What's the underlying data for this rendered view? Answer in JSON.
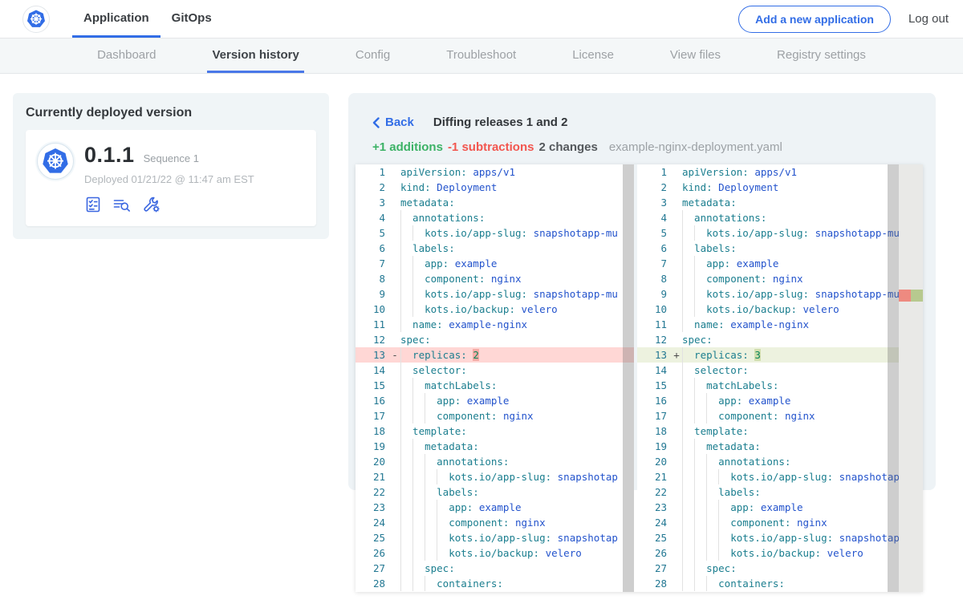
{
  "colors": {
    "accent": "#326de6",
    "green": "#3cb266",
    "red": "#f2564f",
    "key": "#1b7e8f",
    "val": "#2353cc",
    "numv": "#098658",
    "linenum": "#237893",
    "del_line": "#ffd7d5",
    "del_char": "#f8aba6",
    "ins_line": "#edf2df",
    "ins_char": "#d2deae"
  },
  "topnav": {
    "tabs": [
      {
        "label": "Application",
        "active": true
      },
      {
        "label": "GitOps",
        "active": false
      }
    ],
    "add_button": "Add a new application",
    "logout": "Log out"
  },
  "subnav": {
    "items": [
      {
        "label": "Dashboard",
        "active": false
      },
      {
        "label": "Version history",
        "active": true
      },
      {
        "label": "Config",
        "active": false
      },
      {
        "label": "Troubleshoot",
        "active": false
      },
      {
        "label": "License",
        "active": false
      },
      {
        "label": "View files",
        "active": false
      },
      {
        "label": "Registry settings",
        "active": false
      }
    ]
  },
  "deployed_card": {
    "title": "Currently deployed version",
    "version": "0.1.1",
    "sequence": "Sequence 1",
    "deployed_at": "Deployed 01/21/22 @ 11:47 am EST",
    "icons": [
      "preflight-checks-icon",
      "deploy-logs-icon",
      "config-icon"
    ]
  },
  "diff": {
    "back_label": "Back",
    "title": "Diffing releases 1 and 2",
    "additions": "+1 additions",
    "subtractions": "-1 subtractions",
    "changes": "2 changes",
    "filename": "example-nginx-deployment.yaml",
    "left_lines": [
      {
        "n": 1,
        "i": 0,
        "k": "apiVersion",
        "v": "apps/v1"
      },
      {
        "n": 2,
        "i": 0,
        "k": "kind",
        "v": "Deployment"
      },
      {
        "n": 3,
        "i": 0,
        "k": "metadata",
        "v": ""
      },
      {
        "n": 4,
        "i": 2,
        "k": "annotations",
        "v": ""
      },
      {
        "n": 5,
        "i": 4,
        "k": "kots.io/app-slug",
        "v": "snapshotapp-mu"
      },
      {
        "n": 6,
        "i": 2,
        "k": "labels",
        "v": ""
      },
      {
        "n": 7,
        "i": 4,
        "k": "app",
        "v": "example"
      },
      {
        "n": 8,
        "i": 4,
        "k": "component",
        "v": "nginx"
      },
      {
        "n": 9,
        "i": 4,
        "k": "kots.io/app-slug",
        "v": "snapshotapp-mu"
      },
      {
        "n": 10,
        "i": 4,
        "k": "kots.io/backup",
        "v": "velero"
      },
      {
        "n": 11,
        "i": 2,
        "k": "name",
        "v": "example-nginx"
      },
      {
        "n": 12,
        "i": 0,
        "k": "spec",
        "v": ""
      },
      {
        "n": 13,
        "i": 2,
        "k": "replicas",
        "v": "2",
        "diff": "del",
        "sign": "-",
        "vt": "num",
        "charDiff": true
      },
      {
        "n": 14,
        "i": 2,
        "k": "selector",
        "v": ""
      },
      {
        "n": 15,
        "i": 4,
        "k": "matchLabels",
        "v": ""
      },
      {
        "n": 16,
        "i": 6,
        "k": "app",
        "v": "example"
      },
      {
        "n": 17,
        "i": 6,
        "k": "component",
        "v": "nginx"
      },
      {
        "n": 18,
        "i": 2,
        "k": "template",
        "v": ""
      },
      {
        "n": 19,
        "i": 4,
        "k": "metadata",
        "v": ""
      },
      {
        "n": 20,
        "i": 6,
        "k": "annotations",
        "v": ""
      },
      {
        "n": 21,
        "i": 8,
        "k": "kots.io/app-slug",
        "v": "snapshotap"
      },
      {
        "n": 22,
        "i": 6,
        "k": "labels",
        "v": ""
      },
      {
        "n": 23,
        "i": 8,
        "k": "app",
        "v": "example"
      },
      {
        "n": 24,
        "i": 8,
        "k": "component",
        "v": "nginx"
      },
      {
        "n": 25,
        "i": 8,
        "k": "kots.io/app-slug",
        "v": "snapshotap"
      },
      {
        "n": 26,
        "i": 8,
        "k": "kots.io/backup",
        "v": "velero"
      },
      {
        "n": 27,
        "i": 4,
        "k": "spec",
        "v": ""
      },
      {
        "n": 28,
        "i": 6,
        "k": "containers",
        "v": ""
      }
    ],
    "right_lines": [
      {
        "n": 1,
        "i": 0,
        "k": "apiVersion",
        "v": "apps/v1"
      },
      {
        "n": 2,
        "i": 0,
        "k": "kind",
        "v": "Deployment"
      },
      {
        "n": 3,
        "i": 0,
        "k": "metadata",
        "v": ""
      },
      {
        "n": 4,
        "i": 2,
        "k": "annotations",
        "v": ""
      },
      {
        "n": 5,
        "i": 4,
        "k": "kots.io/app-slug",
        "v": "snapshotapp-mu"
      },
      {
        "n": 6,
        "i": 2,
        "k": "labels",
        "v": ""
      },
      {
        "n": 7,
        "i": 4,
        "k": "app",
        "v": "example"
      },
      {
        "n": 8,
        "i": 4,
        "k": "component",
        "v": "nginx"
      },
      {
        "n": 9,
        "i": 4,
        "k": "kots.io/app-slug",
        "v": "snapshotapp-mu"
      },
      {
        "n": 10,
        "i": 4,
        "k": "kots.io/backup",
        "v": "velero"
      },
      {
        "n": 11,
        "i": 2,
        "k": "name",
        "v": "example-nginx"
      },
      {
        "n": 12,
        "i": 0,
        "k": "spec",
        "v": ""
      },
      {
        "n": 13,
        "i": 2,
        "k": "replicas",
        "v": "3",
        "diff": "ins",
        "sign": "+",
        "vt": "num",
        "charDiff": true
      },
      {
        "n": 14,
        "i": 2,
        "k": "selector",
        "v": ""
      },
      {
        "n": 15,
        "i": 4,
        "k": "matchLabels",
        "v": ""
      },
      {
        "n": 16,
        "i": 6,
        "k": "app",
        "v": "example"
      },
      {
        "n": 17,
        "i": 6,
        "k": "component",
        "v": "nginx"
      },
      {
        "n": 18,
        "i": 2,
        "k": "template",
        "v": ""
      },
      {
        "n": 19,
        "i": 4,
        "k": "metadata",
        "v": ""
      },
      {
        "n": 20,
        "i": 6,
        "k": "annotations",
        "v": ""
      },
      {
        "n": 21,
        "i": 8,
        "k": "kots.io/app-slug",
        "v": "snapshotap"
      },
      {
        "n": 22,
        "i": 6,
        "k": "labels",
        "v": ""
      },
      {
        "n": 23,
        "i": 8,
        "k": "app",
        "v": "example"
      },
      {
        "n": 24,
        "i": 8,
        "k": "component",
        "v": "nginx"
      },
      {
        "n": 25,
        "i": 8,
        "k": "kots.io/app-slug",
        "v": "snapshotap"
      },
      {
        "n": 26,
        "i": 8,
        "k": "kots.io/backup",
        "v": "velero"
      },
      {
        "n": 27,
        "i": 4,
        "k": "spec",
        "v": ""
      },
      {
        "n": 28,
        "i": 6,
        "k": "containers",
        "v": ""
      }
    ]
  }
}
